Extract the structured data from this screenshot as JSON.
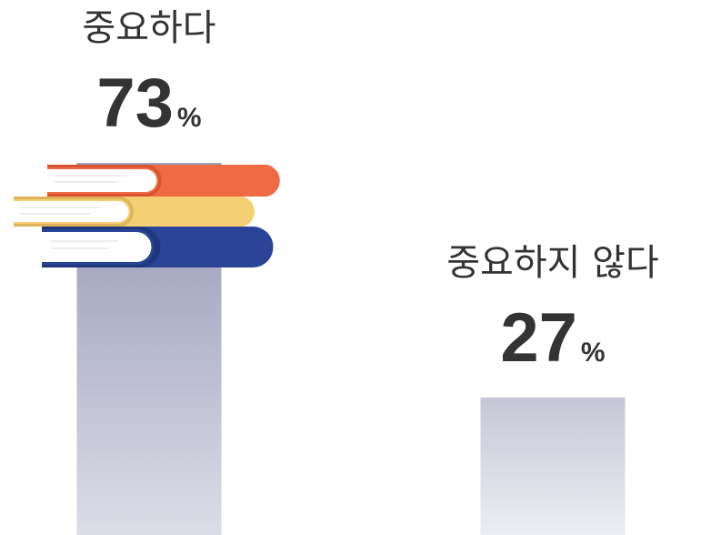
{
  "chart_data": {
    "type": "bar",
    "categories": [
      "중요하다",
      "중요하지 않다"
    ],
    "values": [
      73,
      27
    ],
    "value_labels": [
      "73%",
      "27%"
    ]
  }
}
